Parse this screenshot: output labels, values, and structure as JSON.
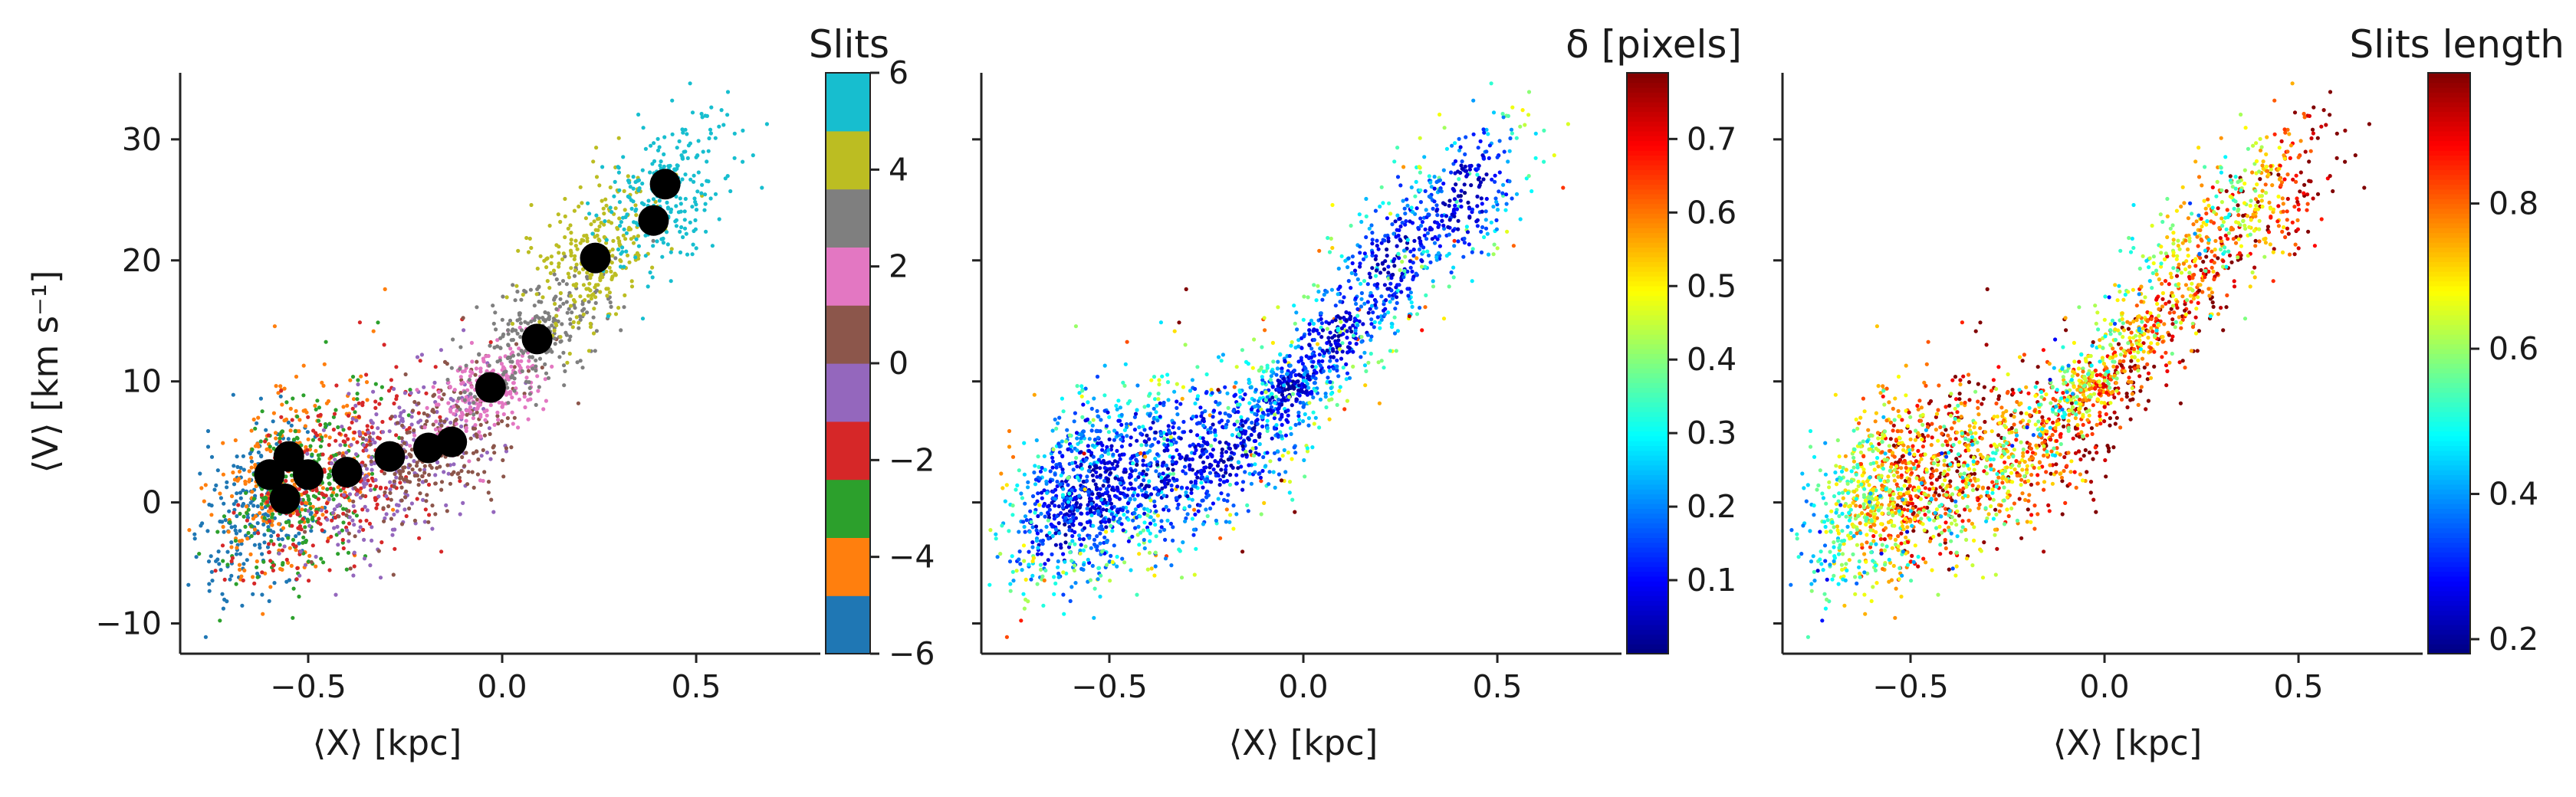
{
  "chart_data": [
    {
      "type": "scatter",
      "title": "",
      "xlabel": "⟨X⟩ [kpc]",
      "ylabel": "⟨V⟩ [km s⁻¹]",
      "xlim": [
        -0.83,
        0.82
      ],
      "ylim": [
        -12.5,
        35.5
      ],
      "xticks": [
        -0.5,
        0.0,
        0.5
      ],
      "xtick_labels": [
        "−0.5",
        "0.0",
        "0.5"
      ],
      "yticks": [
        -10,
        0,
        10,
        20,
        30
      ],
      "ytick_labels": [
        "−10",
        "0",
        "10",
        "20",
        "30"
      ],
      "grid": false,
      "colorbar": {
        "title": "Slits",
        "type": "discrete",
        "range": [
          -6,
          6
        ],
        "ticks": [
          -6,
          -4,
          -2,
          0,
          2,
          4,
          6
        ],
        "tick_labels": [
          "−6",
          "−4",
          "−2",
          "0",
          "2",
          "4",
          "6"
        ],
        "colors": [
          "#1f77b4",
          "#ff7f0e",
          "#2ca02c",
          "#d62728",
          "#9467bd",
          "#8c564b",
          "#e377c2",
          "#7f7f7f",
          "#bcbd22",
          "#17becf"
        ]
      },
      "clusters": [
        {
          "slit": -6,
          "cx": -0.62,
          "cy": -1.0,
          "sx": 0.08,
          "sy": 3.6,
          "color": "#1f77b4"
        },
        {
          "slit": -4.8,
          "cx": -0.55,
          "cy": 2.0,
          "sx": 0.1,
          "sy": 4.0,
          "color": "#ff7f0e"
        },
        {
          "slit": -3.6,
          "cx": -0.52,
          "cy": 1.0,
          "sx": 0.09,
          "sy": 3.5,
          "color": "#2ca02c"
        },
        {
          "slit": -2.4,
          "cx": -0.4,
          "cy": 3.0,
          "sx": 0.12,
          "sy": 4.0,
          "color": "#d62728"
        },
        {
          "slit": -1.2,
          "cx": -0.28,
          "cy": 3.5,
          "sx": 0.12,
          "sy": 3.5,
          "color": "#9467bd"
        },
        {
          "slit": 0,
          "cx": -0.17,
          "cy": 4.5,
          "sx": 0.11,
          "sy": 3.2,
          "color": "#8c564b"
        },
        {
          "slit": 1.2,
          "cx": -0.03,
          "cy": 9.5,
          "sx": 0.07,
          "sy": 1.8,
          "color": "#e377c2"
        },
        {
          "slit": 2.4,
          "cx": 0.09,
          "cy": 14.0,
          "sx": 0.09,
          "sy": 2.2,
          "color": "#7f7f7f"
        },
        {
          "slit": 3.6,
          "cx": 0.24,
          "cy": 20.5,
          "sx": 0.09,
          "sy": 3.0,
          "color": "#bcbd22"
        },
        {
          "slit": 4.8,
          "cx": 0.42,
          "cy": 25.5,
          "sx": 0.09,
          "sy": 3.0,
          "color": "#17becf"
        }
      ],
      "centroids": [
        {
          "x": -0.6,
          "y": 2.3
        },
        {
          "x": -0.55,
          "y": 3.8
        },
        {
          "x": -0.5,
          "y": 2.3
        },
        {
          "x": -0.56,
          "y": 0.3
        },
        {
          "x": -0.4,
          "y": 2.5
        },
        {
          "x": -0.29,
          "y": 3.8
        },
        {
          "x": -0.19,
          "y": 4.5
        },
        {
          "x": -0.13,
          "y": 5.0
        },
        {
          "x": -0.03,
          "y": 9.5
        },
        {
          "x": 0.09,
          "y": 13.5
        },
        {
          "x": 0.24,
          "y": 20.2
        },
        {
          "x": 0.39,
          "y": 23.3
        },
        {
          "x": 0.42,
          "y": 26.3
        }
      ]
    },
    {
      "type": "scatter",
      "title": "",
      "xlabel": "⟨X⟩ [kpc]",
      "ylabel": "",
      "xlim": [
        -0.83,
        0.82
      ],
      "ylim": [
        -12.5,
        35.5
      ],
      "xticks": [
        -0.5,
        0.0,
        0.5
      ],
      "xtick_labels": [
        "−0.5",
        "0.0",
        "0.5"
      ],
      "yticks": [
        -10,
        0,
        10,
        20,
        30
      ],
      "grid": false,
      "colorbar": {
        "title": "δ [pixels]",
        "type": "continuous",
        "colormap": "jet",
        "range": [
          0.0,
          0.79
        ],
        "ticks": [
          0.1,
          0.2,
          0.3,
          0.4,
          0.5,
          0.6,
          0.7
        ],
        "tick_labels": [
          "0.1",
          "0.2",
          "0.3",
          "0.4",
          "0.5",
          "0.6",
          "0.7"
        ]
      }
    },
    {
      "type": "scatter",
      "title": "",
      "xlabel": "⟨X⟩ [kpc]",
      "ylabel": "",
      "xlim": [
        -0.83,
        0.82
      ],
      "ylim": [
        -12.5,
        35.5
      ],
      "xticks": [
        -0.5,
        0.0,
        0.5
      ],
      "xtick_labels": [
        "−0.5",
        "0.0",
        "0.5"
      ],
      "yticks": [
        -10,
        0,
        10,
        20,
        30
      ],
      "grid": false,
      "colorbar": {
        "title": "Slits length",
        "type": "continuous",
        "colormap": "jet",
        "range": [
          0.18,
          0.98
        ],
        "ticks": [
          0.2,
          0.4,
          0.6,
          0.8
        ],
        "tick_labels": [
          "0.2",
          "0.4",
          "0.6",
          "0.8"
        ]
      }
    }
  ]
}
